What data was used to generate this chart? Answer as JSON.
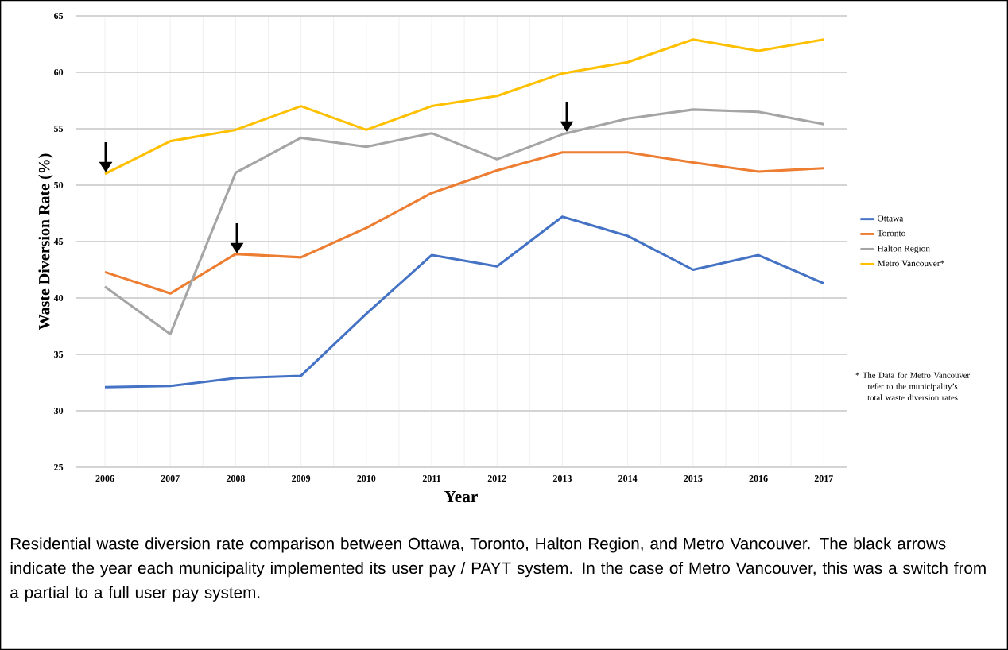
{
  "chart_data": {
    "type": "line",
    "ylabel": "Waste Diversion Rate (%)",
    "xlabel": "Year",
    "categories": [
      "2006",
      "2007",
      "2008",
      "2009",
      "2010",
      "2011",
      "2012",
      "2013",
      "2014",
      "2015",
      "2016",
      "2017"
    ],
    "series": [
      {
        "name": "Ottawa",
        "color": "#4472c4",
        "values": [
          32.1,
          32.2,
          32.9,
          33.1,
          38.6,
          43.8,
          42.8,
          47.2,
          45.5,
          42.5,
          43.8,
          41.3
        ]
      },
      {
        "name": "Toronto",
        "color": "#ed7d31",
        "values": [
          42.3,
          40.4,
          43.9,
          43.6,
          46.2,
          49.3,
          51.3,
          52.9,
          52.9,
          52.0,
          51.2,
          51.5
        ]
      },
      {
        "name": "Halton Region",
        "color": "#a5a5a5",
        "values": [
          41.0,
          36.8,
          51.1,
          54.2,
          53.4,
          54.6,
          52.3,
          54.5,
          55.9,
          56.7,
          56.5,
          55.4
        ]
      },
      {
        "name": "Metro Vancouver*",
        "color": "#ffc000",
        "values": [
          51.0,
          53.9,
          54.9,
          57.0,
          54.9,
          57.0,
          57.9,
          59.9,
          60.9,
          62.9,
          61.9,
          62.9
        ]
      }
    ],
    "ylim": [
      25,
      65
    ],
    "yticks": [
      25,
      30,
      35,
      40,
      45,
      50,
      55,
      60,
      65
    ],
    "grid": true,
    "legend": "right",
    "marker": "none",
    "line_style": "solid",
    "annotations": [
      "* The Data for Metro Vancouver refer to the municipality’s total waste diversion rates",
      "Residential waste diversion rate comparison between Ottawa, Toronto, Halton Region, and Metro Vancouver. The black arrows indicate the year each municipality implemented its user pay / PAYT system. In the case of Metro Vancouver, this was a switch from a partial to a full user pay system."
    ]
  }
}
